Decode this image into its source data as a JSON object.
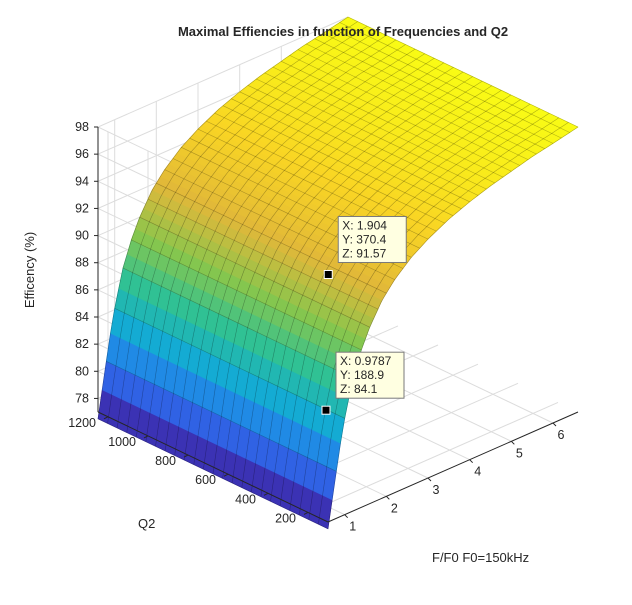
{
  "chart_data": {
    "type": "surface",
    "title": "Maximal Effiencies in function of Frequencies and Q2",
    "xlabel": "F/F0 F0=150kHz",
    "ylabel": "Q2",
    "zlabel": "Efficency (%)",
    "x_ticks": [
      "1",
      "2",
      "3",
      "4",
      "5",
      "6"
    ],
    "y_ticks": [
      "200",
      "400",
      "600",
      "800",
      "1000",
      "1200"
    ],
    "z_ticks": [
      "78",
      "80",
      "82",
      "84",
      "86",
      "88",
      "90",
      "92",
      "94",
      "96",
      "98"
    ],
    "xlim": [
      0.6,
      6.6
    ],
    "ylim": [
      100,
      1250
    ],
    "zlim": [
      77,
      98
    ],
    "grid": true,
    "colormap": "parula",
    "colors": [
      "#3e26a8",
      "#2d6ef0",
      "#12a9d8",
      "#2cc197",
      "#86c64e",
      "#e1b839",
      "#f9d524",
      "#f9fb15"
    ],
    "surface_profile": {
      "x": [
        0.6,
        0.75,
        0.9,
        1.0,
        1.2,
        1.4,
        1.6,
        1.9,
        2.2,
        2.6,
        3.0,
        3.5,
        4.0,
        4.5,
        5.0,
        5.5,
        6.0,
        6.6
      ],
      "z": [
        76.5,
        79.5,
        82.4,
        84.1,
        86.8,
        88.6,
        90.0,
        91.6,
        92.7,
        93.8,
        94.6,
        95.4,
        96.0,
        96.5,
        96.9,
        97.3,
        97.6,
        98.0
      ]
    },
    "data_tips": [
      {
        "x": 1.904,
        "y": 370.4,
        "z": 91.57,
        "labels": [
          "X: 1.904",
          "Y: 370.4",
          "Z: 91.57"
        ]
      },
      {
        "x": 0.9787,
        "y": 188.9,
        "z": 84.1,
        "labels": [
          "X: 0.9787",
          "Y: 188.9",
          "Z: 84.1"
        ]
      }
    ]
  }
}
